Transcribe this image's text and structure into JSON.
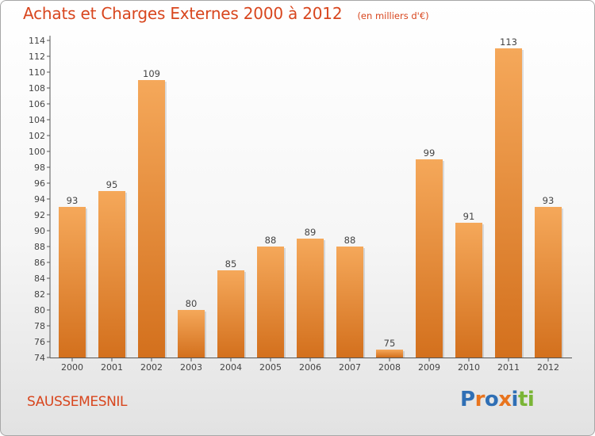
{
  "header": {
    "title": "Achats et Charges Externes 2000 à 2012",
    "unit": "(en milliers d'€)"
  },
  "footer": {
    "commune": "SAUSSEMESNIL",
    "logo_text": "Proxiti",
    "logo_colors": [
      "#2f6fb5",
      "#e8741e",
      "#2f6fb5",
      "#e8741e",
      "#2f6fb5",
      "#7ab536",
      "#7ab536"
    ]
  },
  "colors": {
    "accent": "#d8461e",
    "bar_top": "#f5a85a",
    "bar_bottom": "#d3701d"
  },
  "chart_data": {
    "type": "bar",
    "categories": [
      "2000",
      "2001",
      "2002",
      "2003",
      "2004",
      "2005",
      "2006",
      "2007",
      "2008",
      "2009",
      "2010",
      "2011",
      "2012"
    ],
    "values": [
      93,
      95,
      109,
      80,
      85,
      88,
      89,
      88,
      75,
      99,
      91,
      113,
      93
    ],
    "ylim": [
      74,
      114
    ],
    "yticks": [
      74,
      76,
      78,
      80,
      82,
      84,
      86,
      88,
      90,
      92,
      94,
      96,
      98,
      100,
      102,
      104,
      106,
      108,
      110,
      112,
      114
    ],
    "grid": false,
    "data_labels": true
  }
}
